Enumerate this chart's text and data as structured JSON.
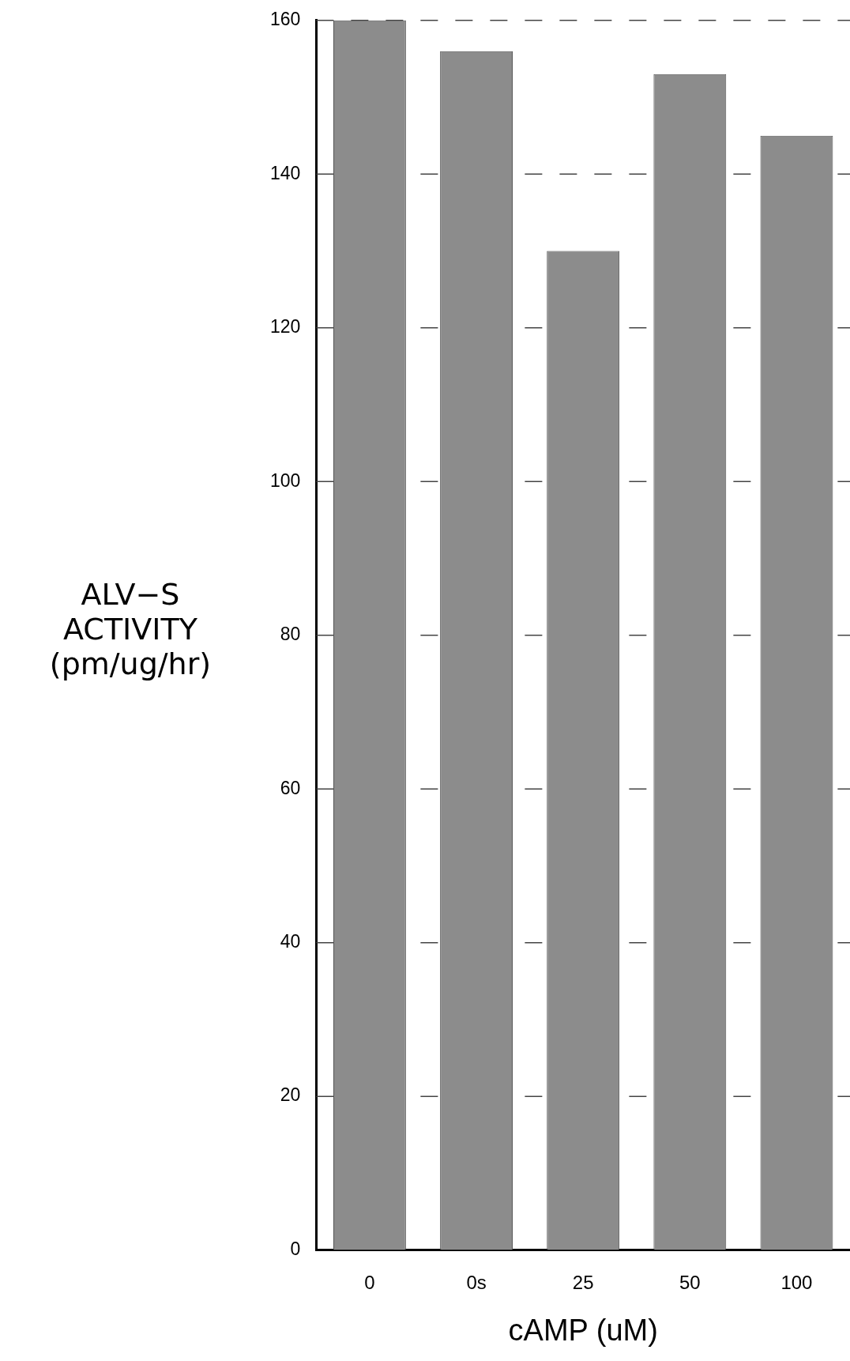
{
  "chart_data": {
    "type": "bar",
    "xlabel": "cAMP (uM)",
    "ylabel": "ALV−S\nACTIVITY\n(pm/ug/hr)",
    "categories": [
      "0",
      "0s",
      "25",
      "50",
      "100"
    ],
    "values": [
      160,
      156,
      130,
      153,
      145
    ],
    "color": "#8c8c8c",
    "ylim": [
      0,
      160
    ],
    "yticks": [
      0,
      20,
      40,
      60,
      80,
      100,
      120,
      140,
      160
    ],
    "grid": "y"
  }
}
